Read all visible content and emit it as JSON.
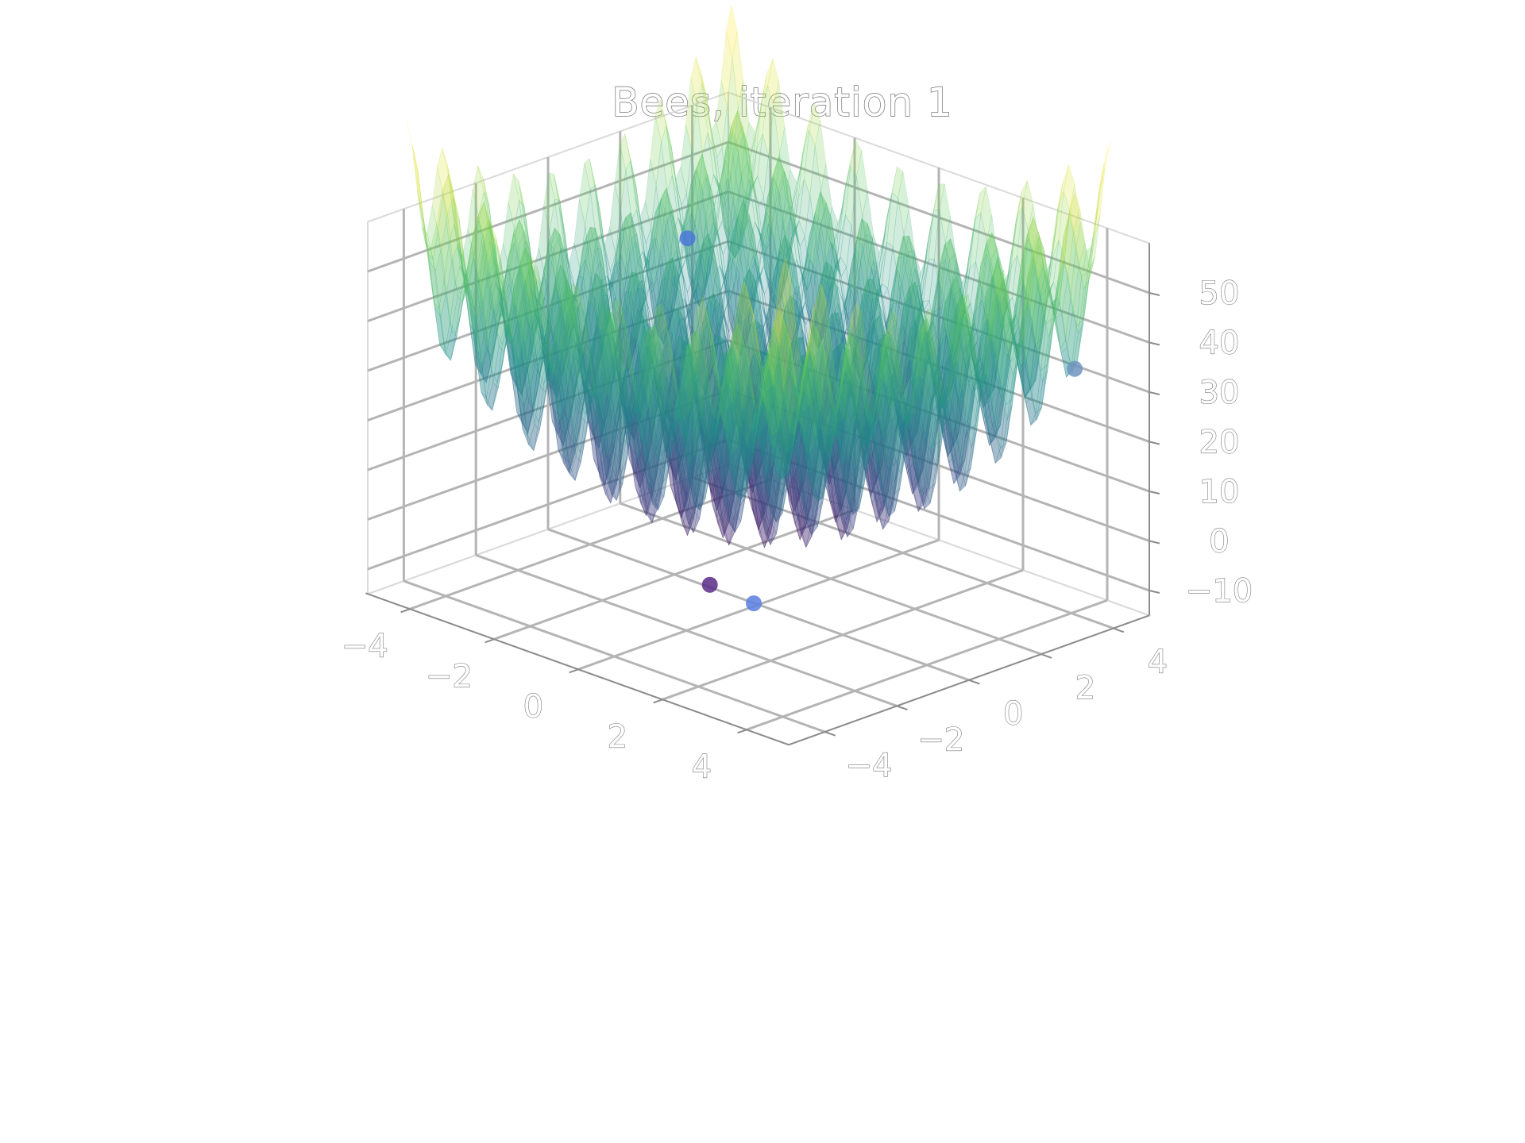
{
  "chart_data": {
    "type": "surface3d",
    "title": "Bees, iteration 1",
    "xlabel": "",
    "ylabel": "",
    "zlabel": "",
    "xlim": [
      -5,
      5
    ],
    "ylim": [
      -5,
      5
    ],
    "zlim": [
      -15,
      60
    ],
    "x_ticks": [
      -4,
      -2,
      0,
      2,
      4
    ],
    "y_ticks": [
      -4,
      -2,
      0,
      2,
      4
    ],
    "z_ticks": [
      -10,
      0,
      10,
      20,
      30,
      40,
      50
    ],
    "x_tick_labels": [
      "−4",
      "−2",
      "0",
      "2",
      "4"
    ],
    "y_tick_labels": [
      "−4",
      "−2",
      "0",
      "2",
      "4"
    ],
    "z_tick_labels": [
      "−10",
      "0",
      "10",
      "20",
      "30",
      "40",
      "50"
    ],
    "grid": true,
    "colormap": "viridis",
    "colormap_stops": [
      "#440154",
      "#3b528b",
      "#21918c",
      "#5ec962",
      "#fde725"
    ],
    "surface_opacity": 0.45,
    "surface_function": "rastrigin",
    "surface_range": [
      -4.5,
      4.5
    ],
    "points": [
      {
        "x": -4.6,
        "y": 3.4,
        "z": 36,
        "color": "#4a78d8"
      },
      {
        "x": 0.9,
        "y": -2.4,
        "z": -2,
        "color": "#5b2a88"
      },
      {
        "x": 2.2,
        "y": -2.7,
        "z": -1,
        "color": "#5a7ee0"
      },
      {
        "x": 4.0,
        "y": 4.1,
        "z": 34,
        "color": "#6f95bf"
      }
    ]
  }
}
